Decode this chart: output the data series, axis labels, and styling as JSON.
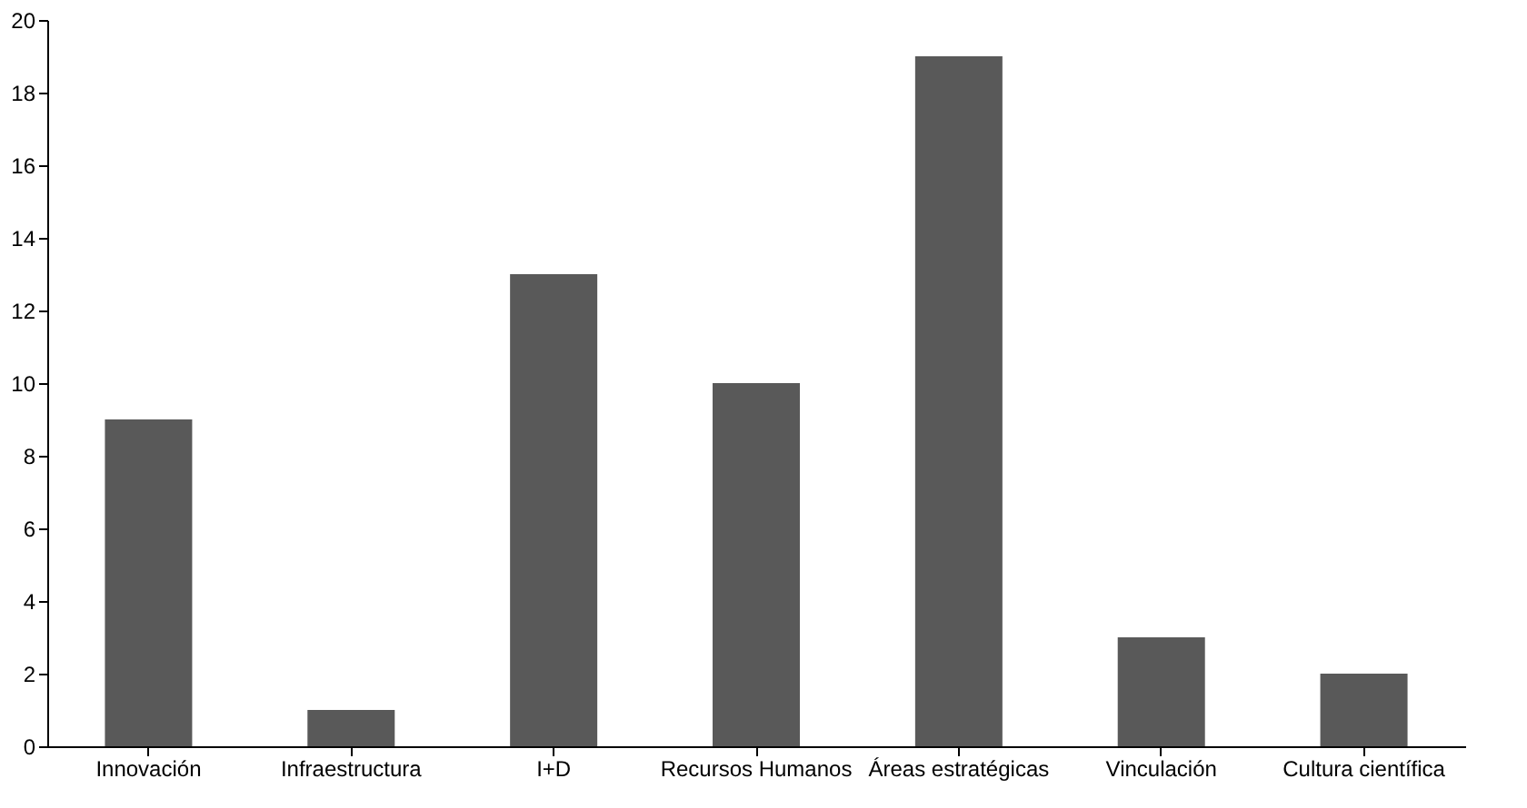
{
  "chart_data": {
    "type": "bar",
    "categories": [
      "Innovación",
      "Infraestructura",
      "I+D",
      "Recursos Humanos",
      "Áreas estratégicas",
      "Vinculación",
      "Cultura científica"
    ],
    "values": [
      9,
      1,
      13,
      10,
      19,
      3,
      2
    ],
    "color": "#595959",
    "ylim": [
      0,
      20
    ],
    "yticks": [
      0,
      2,
      4,
      6,
      8,
      10,
      12,
      14,
      16,
      18,
      20
    ],
    "grid": false
  }
}
